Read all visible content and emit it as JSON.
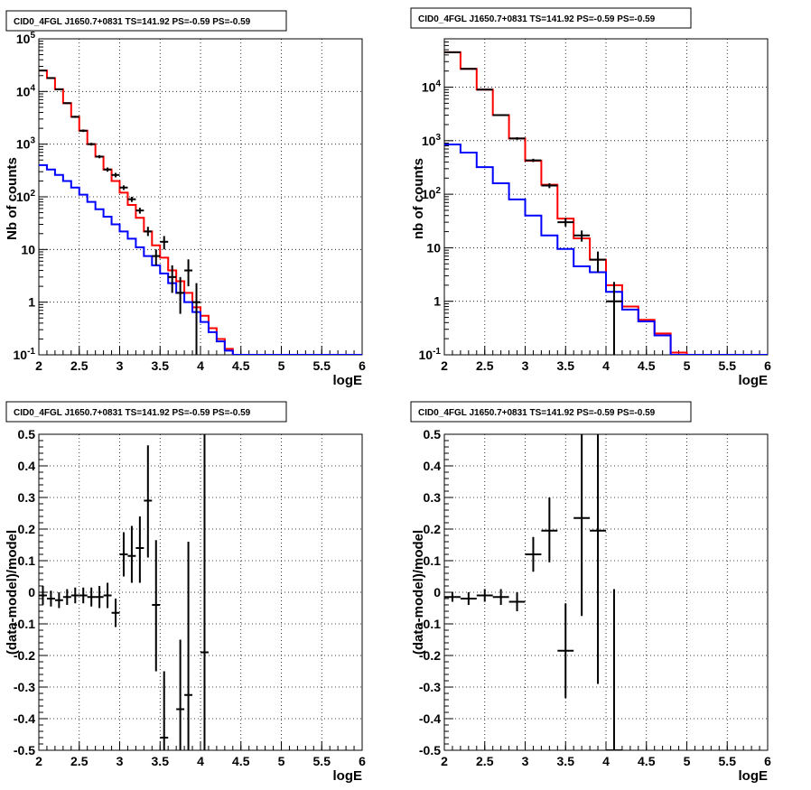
{
  "chart_data": [
    {
      "type": "histogram",
      "title": "CID0_4FGL J1650.7+0831 TS=141.92 PS=-0.59 PS=-0.59",
      "xlabel": "logE",
      "ylabel": "Nb of counts",
      "xlim": [
        2,
        6
      ],
      "ylim": [
        0.1,
        100000
      ],
      "yscale": "log",
      "grid": true,
      "x_ticks": [
        "2",
        "2.5",
        "3",
        "3.5",
        "4",
        "4.5",
        "5",
        "5.5",
        "6"
      ],
      "y_ticks": [
        "10^-1",
        "1",
        "10",
        "10^2",
        "10^3",
        "10^4",
        "10^5"
      ],
      "bin_edges": [
        2.0,
        2.1,
        2.2,
        2.3,
        2.4,
        2.5,
        2.6,
        2.7,
        2.8,
        2.9,
        3.0,
        3.1,
        3.2,
        3.3,
        3.4,
        3.5,
        3.6,
        3.7,
        3.8,
        3.9,
        4.0,
        4.1,
        4.2,
        4.3,
        4.4,
        4.5,
        4.6,
        4.7,
        4.8,
        4.9,
        5.0,
        5.1,
        5.2,
        5.3,
        5.4,
        5.5,
        5.6,
        5.7,
        5.8,
        5.9,
        6.0
      ],
      "series": [
        {
          "name": "",
          "color": "#ff0000",
          "style": "step",
          "values": [
            25000,
            18000,
            11000,
            6000,
            3300,
            1800,
            1000,
            580,
            330,
            200,
            120,
            70,
            40,
            22,
            12,
            7,
            4,
            2.5,
            1.5,
            0.8,
            0.55,
            0.32,
            0.2,
            0.13,
            0.1,
            0.1,
            0.1,
            0.1,
            0.1,
            0.1,
            0.1,
            0.1,
            0.1,
            0.1,
            0.1,
            0.1,
            0.1,
            0.1,
            0.1,
            0.1
          ]
        },
        {
          "name": "",
          "color": "#0000ff",
          "style": "step",
          "values": [
            400,
            330,
            260,
            200,
            150,
            110,
            80,
            58,
            42,
            30,
            22,
            16,
            11,
            7.5,
            5,
            3.5,
            2.3,
            1.5,
            1,
            0.65,
            0.42,
            0.27,
            0.18,
            0.12,
            0.1,
            0.1,
            0.1,
            0.1,
            0.1,
            0.1,
            0.1,
            0.1,
            0.1,
            0.1,
            0.1,
            0.1,
            0.1,
            0.1,
            0.1,
            0.1
          ]
        },
        {
          "name": "",
          "color": "#000000",
          "style": "errorbar",
          "points": [
            {
              "x": 2.05,
              "y": 25000,
              "ylo": 24500,
              "yhi": 25500
            },
            {
              "x": 2.15,
              "y": 18000,
              "ylo": 17600,
              "yhi": 18400
            },
            {
              "x": 2.25,
              "y": 11000,
              "ylo": 10700,
              "yhi": 11300
            },
            {
              "x": 2.35,
              "y": 6000,
              "ylo": 5800,
              "yhi": 6200
            },
            {
              "x": 2.45,
              "y": 3300,
              "ylo": 3150,
              "yhi": 3450
            },
            {
              "x": 2.55,
              "y": 1800,
              "ylo": 1700,
              "yhi": 1900
            },
            {
              "x": 2.65,
              "y": 1000,
              "ylo": 940,
              "yhi": 1060
            },
            {
              "x": 2.75,
              "y": 580,
              "ylo": 540,
              "yhi": 620
            },
            {
              "x": 2.85,
              "y": 330,
              "ylo": 300,
              "yhi": 360
            },
            {
              "x": 2.95,
              "y": 260,
              "ylo": 235,
              "yhi": 285
            },
            {
              "x": 3.05,
              "y": 150,
              "ylo": 135,
              "yhi": 165
            },
            {
              "x": 3.15,
              "y": 90,
              "ylo": 80,
              "yhi": 100
            },
            {
              "x": 3.25,
              "y": 55,
              "ylo": 48,
              "yhi": 62
            },
            {
              "x": 3.35,
              "y": 22,
              "ylo": 18,
              "yhi": 27
            },
            {
              "x": 3.45,
              "y": 7.5,
              "ylo": 5,
              "yhi": 10
            },
            {
              "x": 3.55,
              "y": 14,
              "ylo": 10,
              "yhi": 18
            },
            {
              "x": 3.65,
              "y": 3,
              "ylo": 1.5,
              "yhi": 5
            },
            {
              "x": 3.75,
              "y": 1.5,
              "ylo": 0.6,
              "yhi": 3
            },
            {
              "x": 3.85,
              "y": 4,
              "ylo": 2,
              "yhi": 6.5
            },
            {
              "x": 3.95,
              "y": 1,
              "ylo": 0.1,
              "yhi": 2.3
            }
          ]
        }
      ]
    },
    {
      "type": "histogram",
      "title": "CID0_4FGL J1650.7+0831 TS=141.92 PS=-0.59 PS=-0.59",
      "xlabel": "logE",
      "ylabel": "nb of counts",
      "xlim": [
        2,
        6
      ],
      "ylim": [
        0.1,
        80000
      ],
      "yscale": "log",
      "grid": true,
      "x_ticks": [
        "2",
        "2.5",
        "3",
        "3.5",
        "4",
        "4.5",
        "5",
        "5.5",
        "6"
      ],
      "y_ticks": [
        "10^-1",
        "1",
        "10",
        "10^2",
        "10^3",
        "10^4"
      ],
      "bin_edges": [
        2.0,
        2.2,
        2.4,
        2.6,
        2.8,
        3.0,
        3.2,
        3.4,
        3.6,
        3.8,
        4.0,
        4.2,
        4.4,
        4.6,
        4.8,
        5.0,
        5.2,
        5.4,
        5.6,
        5.8,
        6.0
      ],
      "series": [
        {
          "name": "",
          "color": "#ff0000",
          "style": "step",
          "values": [
            45000,
            22000,
            9000,
            3000,
            1100,
            420,
            150,
            35,
            15,
            6,
            2,
            0.8,
            0.45,
            0.25,
            0.11,
            0.1,
            0.1,
            0.1,
            0.1,
            0.1
          ]
        },
        {
          "name": "",
          "color": "#0000ff",
          "style": "step",
          "values": [
            850,
            600,
            320,
            160,
            80,
            40,
            17,
            9.5,
            4.5,
            3.5,
            1.5,
            0.7,
            0.42,
            0.23,
            0.1,
            0.1,
            0.1,
            0.1,
            0.1,
            0.1
          ]
        },
        {
          "name": "",
          "color": "#000000",
          "style": "errorbar",
          "points": [
            {
              "x": 2.1,
              "y": 45000,
              "ylo": 44500,
              "yhi": 45500
            },
            {
              "x": 2.3,
              "y": 22000,
              "ylo": 21700,
              "yhi": 22300
            },
            {
              "x": 2.5,
              "y": 9000,
              "ylo": 8800,
              "yhi": 9200
            },
            {
              "x": 2.7,
              "y": 3000,
              "ylo": 2900,
              "yhi": 3100
            },
            {
              "x": 2.9,
              "y": 1100,
              "ylo": 1040,
              "yhi": 1160
            },
            {
              "x": 3.1,
              "y": 430,
              "ylo": 400,
              "yhi": 460
            },
            {
              "x": 3.3,
              "y": 145,
              "ylo": 130,
              "yhi": 160
            },
            {
              "x": 3.5,
              "y": 30,
              "ylo": 25,
              "yhi": 36
            },
            {
              "x": 3.7,
              "y": 17,
              "ylo": 13,
              "yhi": 21
            },
            {
              "x": 3.9,
              "y": 6,
              "ylo": 3.5,
              "yhi": 8.5
            },
            {
              "x": 4.1,
              "y": 1,
              "ylo": 0.1,
              "yhi": 2.3
            }
          ]
        }
      ]
    },
    {
      "type": "scatter",
      "title": "CID0_4FGL J1650.7+0831 TS=141.92 PS=-0.59 PS=-0.59",
      "xlabel": "logE",
      "ylabel": "(data-model)/model",
      "xlim": [
        2,
        6
      ],
      "ylim": [
        -0.5,
        0.5
      ],
      "grid": true,
      "x_ticks": [
        "2",
        "2.5",
        "3",
        "3.5",
        "4",
        "4.5",
        "5",
        "5.5",
        "6"
      ],
      "y_ticks": [
        "-0.5",
        "-0.4",
        "-0.3",
        "-0.2",
        "-0.1",
        "0",
        "0.1",
        "0.2",
        "0.3",
        "0.4",
        "0.5"
      ],
      "xerr": 0.05,
      "series": [
        {
          "name": "",
          "color": "#000000",
          "style": "errorbar",
          "points": [
            {
              "x": 2.05,
              "y": -0.01,
              "ylo": -0.04,
              "yhi": 0.02
            },
            {
              "x": 2.15,
              "y": -0.02,
              "ylo": -0.045,
              "yhi": 0.005
            },
            {
              "x": 2.25,
              "y": -0.025,
              "ylo": -0.05,
              "yhi": 0.0
            },
            {
              "x": 2.35,
              "y": -0.015,
              "ylo": -0.04,
              "yhi": 0.01
            },
            {
              "x": 2.45,
              "y": -0.01,
              "ylo": -0.035,
              "yhi": 0.015
            },
            {
              "x": 2.55,
              "y": -0.01,
              "ylo": -0.035,
              "yhi": 0.015
            },
            {
              "x": 2.65,
              "y": -0.015,
              "ylo": -0.045,
              "yhi": 0.015
            },
            {
              "x": 2.75,
              "y": -0.015,
              "ylo": -0.05,
              "yhi": 0.02
            },
            {
              "x": 2.85,
              "y": -0.01,
              "ylo": -0.05,
              "yhi": 0.03
            },
            {
              "x": 2.95,
              "y": -0.065,
              "ylo": -0.11,
              "yhi": -0.02
            },
            {
              "x": 3.05,
              "y": 0.12,
              "ylo": 0.05,
              "yhi": 0.19
            },
            {
              "x": 3.15,
              "y": 0.115,
              "ylo": 0.03,
              "yhi": 0.21
            },
            {
              "x": 3.25,
              "y": 0.14,
              "ylo": 0.03,
              "yhi": 0.24
            },
            {
              "x": 3.35,
              "y": 0.29,
              "ylo": 0.11,
              "yhi": 0.465
            },
            {
              "x": 3.45,
              "y": -0.04,
              "ylo": -0.25,
              "yhi": 0.165
            },
            {
              "x": 3.55,
              "y": -0.46,
              "ylo": -0.5,
              "yhi": -0.25
            },
            {
              "x": 3.75,
              "y": -0.37,
              "ylo": -0.5,
              "yhi": -0.15
            },
            {
              "x": 3.85,
              "y": -0.325,
              "ylo": -0.5,
              "yhi": 0.16
            },
            {
              "x": 4.05,
              "y": -0.19,
              "ylo": -0.5,
              "yhi": 0.5
            }
          ]
        }
      ]
    },
    {
      "type": "scatter",
      "title": "CID0_4FGL J1650.7+0831 TS=141.92 PS=-0.59 PS=-0.59",
      "xlabel": "logE",
      "ylabel": "(data-model)/model",
      "xlim": [
        2,
        6
      ],
      "ylim": [
        -0.5,
        0.5
      ],
      "grid": true,
      "x_ticks": [
        "2",
        "2.5",
        "3",
        "3.5",
        "4",
        "4.5",
        "5",
        "5.5",
        "6"
      ],
      "y_ticks": [
        "-0.5",
        "-0.4",
        "-0.3",
        "-0.2",
        "-0.1",
        "0",
        "0.1",
        "0.2",
        "0.3",
        "0.4",
        "0.5"
      ],
      "xerr": 0.1,
      "series": [
        {
          "name": "",
          "color": "#000000",
          "style": "errorbar",
          "points": [
            {
              "x": 2.1,
              "y": -0.015,
              "ylo": -0.03,
              "yhi": 0.0
            },
            {
              "x": 2.3,
              "y": -0.02,
              "ylo": -0.04,
              "yhi": 0.0
            },
            {
              "x": 2.5,
              "y": -0.01,
              "ylo": -0.03,
              "yhi": 0.01
            },
            {
              "x": 2.7,
              "y": -0.015,
              "ylo": -0.04,
              "yhi": 0.01
            },
            {
              "x": 2.9,
              "y": -0.03,
              "ylo": -0.06,
              "yhi": 0.0
            },
            {
              "x": 3.1,
              "y": 0.12,
              "ylo": 0.065,
              "yhi": 0.175
            },
            {
              "x": 3.3,
              "y": 0.195,
              "ylo": 0.095,
              "yhi": 0.3
            },
            {
              "x": 3.5,
              "y": -0.185,
              "ylo": -0.335,
              "yhi": -0.035
            },
            {
              "x": 3.7,
              "y": 0.235,
              "ylo": -0.075,
              "yhi": 0.5
            },
            {
              "x": 3.9,
              "y": 0.195,
              "ylo": -0.29,
              "yhi": 0.5
            },
            {
              "x": 4.1,
              "y": -0.5,
              "ylo": -0.5,
              "yhi": 0.01
            }
          ]
        }
      ]
    }
  ]
}
